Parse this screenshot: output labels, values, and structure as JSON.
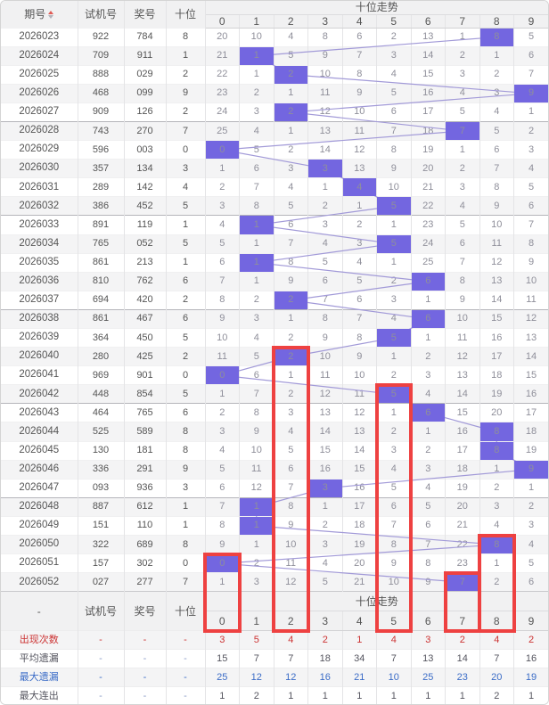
{
  "table": {
    "columns": {
      "period": "期号",
      "test": "试机号",
      "prize": "奖号",
      "tens": "十位",
      "trend": "十位走势"
    },
    "digits": [
      "0",
      "1",
      "2",
      "3",
      "4",
      "5",
      "6",
      "7",
      "8",
      "9"
    ],
    "footer_period_label": "-",
    "dash": "-",
    "rows": [
      {
        "period": "2026023",
        "test": "922",
        "prize": "784",
        "tens": "8",
        "miss": [
          20,
          10,
          4,
          8,
          6,
          2,
          13,
          1,
          8,
          5
        ],
        "hit": 8
      },
      {
        "period": "2026024",
        "test": "709",
        "prize": "911",
        "tens": "1",
        "miss": [
          21,
          1,
          5,
          9,
          7,
          3,
          14,
          2,
          1,
          6
        ],
        "hit": 1
      },
      {
        "period": "2026025",
        "test": "888",
        "prize": "029",
        "tens": "2",
        "miss": [
          22,
          1,
          2,
          10,
          8,
          4,
          15,
          3,
          2,
          7
        ],
        "hit": 2
      },
      {
        "period": "2026026",
        "test": "468",
        "prize": "099",
        "tens": "9",
        "miss": [
          23,
          2,
          1,
          11,
          9,
          5,
          16,
          4,
          3,
          9
        ],
        "hit": 9
      },
      {
        "period": "2026027",
        "test": "909",
        "prize": "126",
        "tens": "2",
        "miss": [
          24,
          3,
          2,
          12,
          10,
          6,
          17,
          5,
          4,
          1
        ],
        "hit": 2
      },
      {
        "period": "2026028",
        "test": "743",
        "prize": "270",
        "tens": "7",
        "miss": [
          25,
          4,
          1,
          13,
          11,
          7,
          18,
          7,
          5,
          2
        ],
        "hit": 7
      },
      {
        "period": "2026029",
        "test": "596",
        "prize": "003",
        "tens": "0",
        "miss": [
          0,
          5,
          2,
          14,
          12,
          8,
          19,
          1,
          6,
          3
        ],
        "hit": 0
      },
      {
        "period": "2026030",
        "test": "357",
        "prize": "134",
        "tens": "3",
        "miss": [
          1,
          6,
          3,
          3,
          13,
          9,
          20,
          2,
          7,
          4
        ],
        "hit": 3
      },
      {
        "period": "2026031",
        "test": "289",
        "prize": "142",
        "tens": "4",
        "miss": [
          2,
          7,
          4,
          1,
          4,
          10,
          21,
          3,
          8,
          5
        ],
        "hit": 4
      },
      {
        "period": "2026032",
        "test": "386",
        "prize": "452",
        "tens": "5",
        "miss": [
          3,
          8,
          5,
          2,
          1,
          5,
          22,
          4,
          9,
          6
        ],
        "hit": 5
      },
      {
        "period": "2026033",
        "test": "891",
        "prize": "119",
        "tens": "1",
        "miss": [
          4,
          1,
          6,
          3,
          2,
          1,
          23,
          5,
          10,
          7
        ],
        "hit": 1
      },
      {
        "period": "2026034",
        "test": "765",
        "prize": "052",
        "tens": "5",
        "miss": [
          5,
          1,
          7,
          4,
          3,
          5,
          24,
          6,
          11,
          8
        ],
        "hit": 5
      },
      {
        "period": "2026035",
        "test": "861",
        "prize": "213",
        "tens": "1",
        "miss": [
          6,
          1,
          8,
          5,
          4,
          1,
          25,
          7,
          12,
          9
        ],
        "hit": 1
      },
      {
        "period": "2026036",
        "test": "810",
        "prize": "762",
        "tens": "6",
        "miss": [
          7,
          1,
          9,
          6,
          5,
          2,
          6,
          8,
          13,
          10
        ],
        "hit": 6
      },
      {
        "period": "2026037",
        "test": "694",
        "prize": "420",
        "tens": "2",
        "miss": [
          8,
          2,
          2,
          7,
          6,
          3,
          1,
          9,
          14,
          11
        ],
        "hit": 2
      },
      {
        "period": "2026038",
        "test": "861",
        "prize": "467",
        "tens": "6",
        "miss": [
          9,
          3,
          1,
          8,
          7,
          4,
          6,
          10,
          15,
          12
        ],
        "hit": 6
      },
      {
        "period": "2026039",
        "test": "364",
        "prize": "450",
        "tens": "5",
        "miss": [
          10,
          4,
          2,
          9,
          8,
          5,
          1,
          11,
          16,
          13
        ],
        "hit": 5
      },
      {
        "period": "2026040",
        "test": "280",
        "prize": "425",
        "tens": "2",
        "miss": [
          11,
          5,
          2,
          10,
          9,
          1,
          2,
          12,
          17,
          14
        ],
        "hit": 2
      },
      {
        "period": "2026041",
        "test": "969",
        "prize": "901",
        "tens": "0",
        "miss": [
          0,
          6,
          1,
          11,
          10,
          2,
          3,
          13,
          18,
          15
        ],
        "hit": 0
      },
      {
        "period": "2026042",
        "test": "448",
        "prize": "854",
        "tens": "5",
        "miss": [
          1,
          7,
          2,
          12,
          11,
          5,
          4,
          14,
          19,
          16
        ],
        "hit": 5
      },
      {
        "period": "2026043",
        "test": "464",
        "prize": "765",
        "tens": "6",
        "miss": [
          2,
          8,
          3,
          13,
          12,
          1,
          6,
          15,
          20,
          17
        ],
        "hit": 6
      },
      {
        "period": "2026044",
        "test": "525",
        "prize": "589",
        "tens": "8",
        "miss": [
          3,
          9,
          4,
          14,
          13,
          2,
          1,
          16,
          8,
          18
        ],
        "hit": 8
      },
      {
        "period": "2026045",
        "test": "130",
        "prize": "181",
        "tens": "8",
        "miss": [
          4,
          10,
          5,
          15,
          14,
          3,
          2,
          17,
          8,
          19
        ],
        "hit": 8
      },
      {
        "period": "2026046",
        "test": "336",
        "prize": "291",
        "tens": "9",
        "miss": [
          5,
          11,
          6,
          16,
          15,
          4,
          3,
          18,
          1,
          9
        ],
        "hit": 9
      },
      {
        "period": "2026047",
        "test": "093",
        "prize": "936",
        "tens": "3",
        "miss": [
          6,
          12,
          7,
          3,
          16,
          5,
          4,
          19,
          2,
          1
        ],
        "hit": 3
      },
      {
        "period": "2026048",
        "test": "887",
        "prize": "612",
        "tens": "1",
        "miss": [
          7,
          1,
          8,
          1,
          17,
          6,
          5,
          20,
          3,
          2
        ],
        "hit": 1
      },
      {
        "period": "2026049",
        "test": "151",
        "prize": "110",
        "tens": "1",
        "miss": [
          8,
          1,
          9,
          2,
          18,
          7,
          6,
          21,
          4,
          3
        ],
        "hit": 1
      },
      {
        "period": "2026050",
        "test": "322",
        "prize": "689",
        "tens": "8",
        "miss": [
          9,
          1,
          10,
          3,
          19,
          8,
          7,
          22,
          8,
          4
        ],
        "hit": 8
      },
      {
        "period": "2026051",
        "test": "157",
        "prize": "302",
        "tens": "0",
        "miss": [
          0,
          2,
          11,
          4,
          20,
          9,
          8,
          23,
          1,
          5
        ],
        "hit": 0
      },
      {
        "period": "2026052",
        "test": "027",
        "prize": "277",
        "tens": "7",
        "miss": [
          1,
          3,
          12,
          5,
          21,
          10,
          9,
          7,
          2,
          6
        ],
        "hit": 7
      }
    ],
    "stats": [
      {
        "label": "出现次数",
        "values": [
          3,
          5,
          4,
          2,
          1,
          4,
          3,
          2,
          4,
          2
        ],
        "color": "#cc3333",
        "dash_color": "#cc3333"
      },
      {
        "label": "平均遗漏",
        "values": [
          15,
          7,
          7,
          18,
          34,
          7,
          13,
          14,
          7,
          16
        ],
        "color": "#55555f",
        "dash_color": "#8c9cc7"
      },
      {
        "label": "最大遗漏",
        "values": [
          25,
          12,
          12,
          16,
          21,
          10,
          25,
          23,
          20,
          19
        ],
        "color": "#3b6cc7",
        "dash_color": "#3b6cc7"
      },
      {
        "label": "最大连出",
        "values": [
          1,
          2,
          1,
          1,
          1,
          1,
          1,
          1,
          2,
          1
        ],
        "color": "#55555f",
        "dash_color": "#8c9cc7"
      }
    ]
  },
  "red_boxes": [
    {
      "col": 0,
      "from_row": 28
    },
    {
      "col": 2,
      "from_row": 17
    },
    {
      "col": 5,
      "from_row": 19
    },
    {
      "col": 7,
      "from_row": 29
    },
    {
      "col": 8,
      "from_row": 27
    }
  ],
  "colors": {
    "highlight": "#7366e0",
    "trend_line": "#a29ad8",
    "red_box": "#ee4141",
    "header_bg": "#f1f1f2",
    "stripe": "#f4f4f5",
    "miss_text": "#8f8f9a",
    "left_text": "#555555"
  }
}
